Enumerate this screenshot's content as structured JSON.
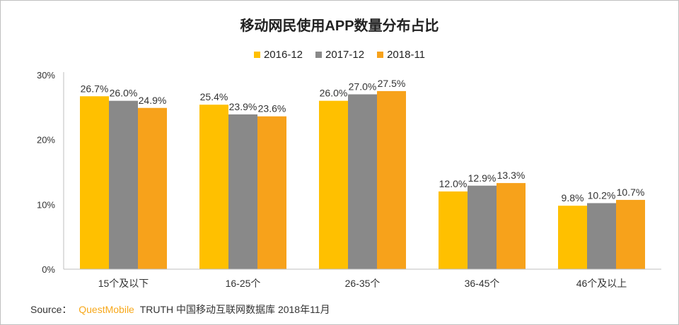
{
  "chart_data": {
    "type": "bar",
    "title": "移动网民使用APP数量分布占比",
    "categories": [
      "15个及以下",
      "16-25个",
      "26-35个",
      "36-45个",
      "46个及以上"
    ],
    "series": [
      {
        "name": "2016-12",
        "color": "#ffc000",
        "values": [
          26.7,
          25.4,
          26.0,
          12.0,
          9.8
        ]
      },
      {
        "name": "2017-12",
        "color": "#898989",
        "values": [
          26.0,
          23.9,
          27.0,
          12.9,
          10.2
        ]
      },
      {
        "name": "2018-11",
        "color": "#f7a21b",
        "values": [
          24.9,
          23.6,
          27.5,
          13.3,
          10.7
        ]
      }
    ],
    "value_labels": [
      [
        "26.7%",
        "25.4%",
        "26.0%",
        "12.0%",
        "9.8%"
      ],
      [
        "26.0%",
        "23.9%",
        "27.0%",
        "12.9%",
        "10.2%"
      ],
      [
        "24.9%",
        "23.6%",
        "27.5%",
        "13.3%",
        "10.7%"
      ]
    ],
    "yticks": [
      {
        "value": 0,
        "label": "0%"
      },
      {
        "value": 10,
        "label": "10%"
      },
      {
        "value": 20,
        "label": "20%"
      },
      {
        "value": 30,
        "label": "30%"
      }
    ],
    "ylim": [
      0,
      30
    ],
    "xlabel": "",
    "ylabel": "",
    "grid": false,
    "legend_position": "top-center"
  },
  "source": {
    "prefix": "Source：",
    "brand": "QuestMobile",
    "rest": "TRUTH 中国移动互联网数据库 2018年11月"
  }
}
